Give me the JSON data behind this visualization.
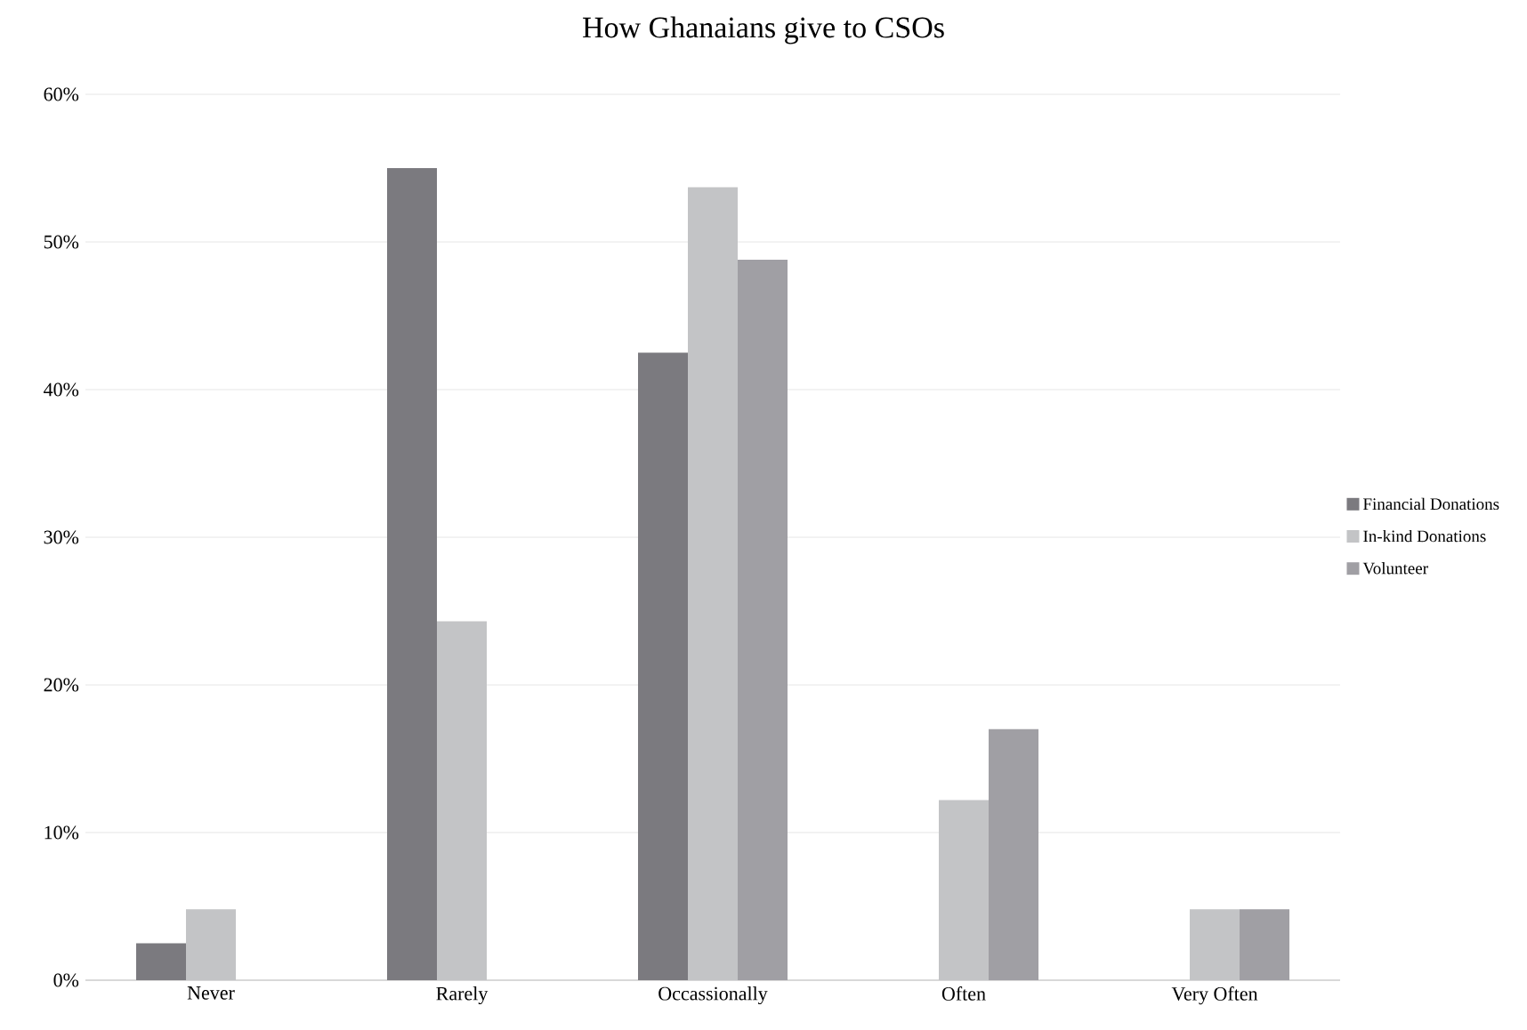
{
  "chart_data": {
    "type": "bar",
    "title": "How Ghanaians give to CSOs",
    "categories": [
      "Never",
      "Rarely",
      "Occassionally",
      "Often",
      "Very Often"
    ],
    "series": [
      {
        "name": "Financial Donations",
        "color": "#7b7a7f",
        "values": [
          2.5,
          55,
          42.5,
          null,
          null
        ]
      },
      {
        "name": "In-kind Donations",
        "color": "#c3c4c6",
        "values": [
          4.8,
          24.3,
          53.7,
          12.2,
          4.8
        ]
      },
      {
        "name": "Volunteer",
        "color": "#a09fa4",
        "values": [
          null,
          null,
          48.8,
          17,
          4.8
        ]
      }
    ],
    "ylim": [
      0,
      60
    ],
    "yticks": [
      {
        "value": 0,
        "label": "0%"
      },
      {
        "value": 10,
        "label": "10%"
      },
      {
        "value": 20,
        "label": "20%"
      },
      {
        "value": 30,
        "label": "30%"
      },
      {
        "value": 40,
        "label": "40%"
      },
      {
        "value": 50,
        "label": "50%"
      },
      {
        "value": 60,
        "label": "60%"
      }
    ],
    "grid": "y",
    "legend": "right"
  }
}
